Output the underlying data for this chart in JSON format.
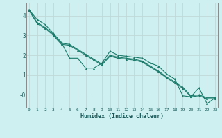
{
  "xlabel": "Humidex (Indice chaleur)",
  "bg_color": "#cef0f0",
  "grid_color": "#b8d8d8",
  "line_color": "#1a7a6a",
  "x_values": [
    0,
    1,
    2,
    3,
    4,
    5,
    6,
    7,
    8,
    9,
    10,
    11,
    12,
    13,
    14,
    15,
    16,
    17,
    18,
    19,
    20,
    21,
    22,
    23
  ],
  "series1": [
    4.3,
    3.8,
    3.55,
    3.1,
    2.65,
    1.85,
    1.85,
    1.35,
    1.35,
    1.6,
    2.2,
    2.0,
    1.95,
    1.9,
    1.85,
    1.6,
    1.45,
    1.05,
    0.8,
    -0.05,
    -0.1,
    0.35,
    -0.45,
    -0.15
  ],
  "series2": [
    4.28,
    3.65,
    3.4,
    3.05,
    2.6,
    2.55,
    2.3,
    2.05,
    1.8,
    1.55,
    2.0,
    1.9,
    1.85,
    1.8,
    1.7,
    1.45,
    1.2,
    0.9,
    0.65,
    0.38,
    -0.05,
    0.0,
    -0.15,
    -0.15
  ],
  "series3": [
    4.26,
    3.6,
    3.35,
    3.0,
    2.55,
    2.5,
    2.25,
    2.0,
    1.75,
    1.5,
    1.95,
    1.85,
    1.8,
    1.75,
    1.65,
    1.4,
    1.15,
    0.85,
    0.6,
    0.33,
    -0.1,
    -0.05,
    -0.2,
    -0.2
  ],
  "ylim": [
    -0.65,
    4.65
  ],
  "xlim": [
    -0.3,
    23.3
  ],
  "yticks": [
    0,
    1,
    2,
    3,
    4
  ],
  "ytick_labels": [
    "-0",
    "1",
    "2",
    "3",
    "4"
  ],
  "xticks": [
    0,
    1,
    2,
    3,
    4,
    5,
    6,
    7,
    8,
    9,
    10,
    11,
    12,
    13,
    14,
    15,
    16,
    17,
    18,
    19,
    20,
    21,
    22,
    23
  ],
  "marker": "^",
  "markersize": 2.2,
  "linewidth": 0.8
}
